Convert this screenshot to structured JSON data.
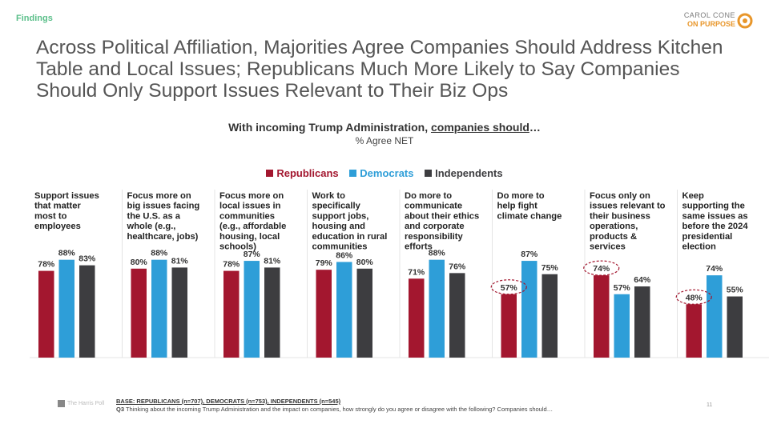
{
  "header": {
    "section": "Findings",
    "logo_line1": "CAROL CONE",
    "logo_line2": "ON PURPOSE"
  },
  "title": "Across Political Affiliation, Majorities Agree Companies Should Address Kitchen Table and Local Issues; Republicans Much More Likely to Say Companies Should Only Support Issues Relevant to Their Biz Ops",
  "chart_data": {
    "type": "bar",
    "title_prefix": "With incoming Trump Administration, ",
    "title_underlined": "companies should",
    "title_suffix": "…",
    "subtitle": "% Agree NET",
    "ylim": [
      0,
      100
    ],
    "colors": {
      "Republicans": "#a3172f",
      "Democrats": "#2e9ed8",
      "Independents": "#3d3d40"
    },
    "series": [
      {
        "name": "Republicans",
        "values": [
          78,
          80,
          78,
          79,
          71,
          57,
          74,
          48
        ]
      },
      {
        "name": "Democrats",
        "values": [
          88,
          88,
          87,
          86,
          88,
          87,
          57,
          74
        ]
      },
      {
        "name": "Independents",
        "values": [
          83,
          81,
          81,
          80,
          76,
          75,
          64,
          55
        ]
      }
    ],
    "categories": [
      [
        "Support issues",
        "that matter",
        "most to",
        "employees"
      ],
      [
        "Focus more on",
        "big issues facing",
        "the U.S. as a",
        "whole (e.g.,",
        "healthcare, jobs)"
      ],
      [
        "Focus more on",
        "local issues in",
        "communities",
        "(e.g., affordable",
        "housing, local",
        "schools)"
      ],
      [
        "Work to",
        "specifically",
        "support jobs,",
        "housing and",
        "education in rural",
        "communities"
      ],
      [
        "Do more to",
        "communicate",
        "about their ethics",
        "and corporate",
        "responsibility",
        "efforts"
      ],
      [
        "Do more to",
        "help fight",
        "climate change"
      ],
      [
        "Focus only on",
        "issues relevant to",
        "their business",
        "operations,",
        "products &",
        "services"
      ],
      [
        "Keep",
        "supporting the",
        "same issues as",
        "before the 2024",
        "presidential",
        "election"
      ]
    ],
    "highlighted": [
      {
        "group": 5,
        "series": 0
      },
      {
        "group": 6,
        "series": 0
      },
      {
        "group": 7,
        "series": 0
      }
    ]
  },
  "footer": {
    "base": "BASE: REPUBLICANS (n=707), DEMOCRATS (n=753), INDEPENDENTS (n=545)",
    "q_label": "Q3",
    "question": " Thinking about the incoming Trump Administration and the impact on companies, how strongly do you agree or disagree with the following? Companies should…",
    "source": "The Harris Poll",
    "page": "11"
  }
}
